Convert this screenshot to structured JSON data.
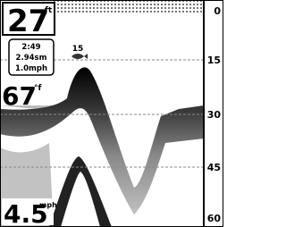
{
  "depth": {
    "value": "27",
    "unit": "ft"
  },
  "info_box": {
    "lines": [
      "2:49",
      "2.94sm",
      "1.0mph"
    ]
  },
  "fish_depth": "15",
  "water_temp": {
    "value": "67",
    "unit": "°f"
  },
  "speed": {
    "value": "4.5",
    "unit": "mph"
  },
  "depth_scale": [
    "0",
    "15",
    "30",
    "45",
    "60"
  ]
}
